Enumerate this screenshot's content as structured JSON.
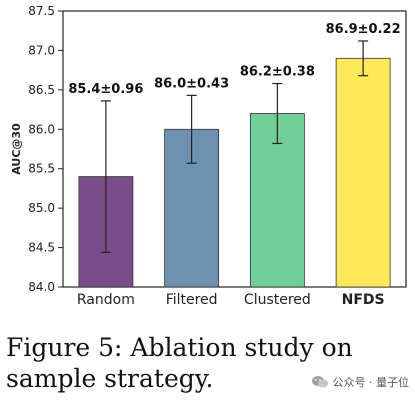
{
  "chart_data": {
    "type": "bar",
    "categories": [
      "Random",
      "Filtered",
      "Clustered",
      "NFDS"
    ],
    "bold_categories": [
      "NFDS"
    ],
    "values": [
      85.4,
      86.0,
      86.2,
      86.9
    ],
    "errors": [
      0.96,
      0.43,
      0.38,
      0.22
    ],
    "data_labels": [
      "85.4±0.96",
      "86.0±0.43",
      "86.2±0.38",
      "86.9±0.22"
    ],
    "colors": [
      "#7a4c8a",
      "#6d91ae",
      "#6fcf97",
      "#fde95a"
    ],
    "ylabel": "AUC@30",
    "ylim": [
      84.0,
      87.5
    ],
    "yticks": [
      "84.0",
      "84.5",
      "85.0",
      "85.5",
      "86.0",
      "86.5",
      "87.0",
      "87.5"
    ],
    "grid": false,
    "legend": "none"
  },
  "caption": {
    "line1": "Figure 5:   Ablation study on",
    "line2": "sample strategy."
  },
  "watermark": {
    "icon": "wechat-icon",
    "text": "公众号 · 量子位"
  }
}
